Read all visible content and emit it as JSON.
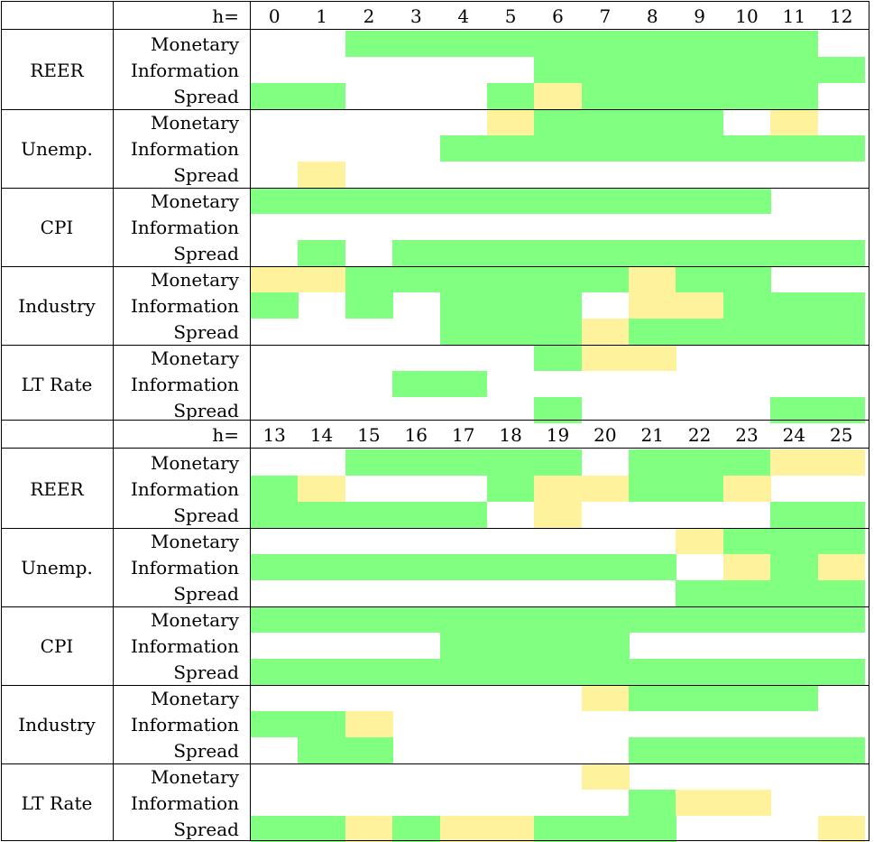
{
  "colors": {
    "significant": "#80ff80",
    "marginal": "#fff29c",
    "none": "#ffffff"
  },
  "legend": {
    "G": "significant",
    "Y": "marginal",
    "W": "none"
  },
  "variables": [
    "REER",
    "Unemp.",
    "CPI",
    "Industry",
    "LT Rate"
  ],
  "shocks": [
    "Monetary",
    "Information",
    "Spread"
  ],
  "header_label": "h=",
  "panels": [
    {
      "horizons": [
        "0",
        "1",
        "2",
        "3",
        "4",
        "5",
        "6",
        "7",
        "8",
        "9",
        "10",
        "11",
        "12"
      ],
      "rows": [
        {
          "variable": "REER",
          "shock": "Monetary",
          "cells": "WWGGGGGGGGGGW"
        },
        {
          "variable": "REER",
          "shock": "Information",
          "cells": "WWWWWWGGGGGGG"
        },
        {
          "variable": "REER",
          "shock": "Spread",
          "cells": "GGWWWGYGGGGGW"
        },
        {
          "variable": "Unemp.",
          "shock": "Monetary",
          "cells": "WWWWWYGGGGWYW"
        },
        {
          "variable": "Unemp.",
          "shock": "Information",
          "cells": "WWWWGGGGGGGGG"
        },
        {
          "variable": "Unemp.",
          "shock": "Spread",
          "cells": "WYWWWWWWWWWWW"
        },
        {
          "variable": "CPI",
          "shock": "Monetary",
          "cells": "GGGGGGGGGGGWW"
        },
        {
          "variable": "CPI",
          "shock": "Information",
          "cells": "WWWWWWWWWWWWW"
        },
        {
          "variable": "CPI",
          "shock": "Spread",
          "cells": "WGWGGGGGGGGGG"
        },
        {
          "variable": "Industry",
          "shock": "Monetary",
          "cells": "YYGGGGGGYGGWW"
        },
        {
          "variable": "Industry",
          "shock": "Information",
          "cells": "GWGWGGGWYYGGG"
        },
        {
          "variable": "Industry",
          "shock": "Spread",
          "cells": "WWWWGGGYGGGGG"
        },
        {
          "variable": "LT Rate",
          "shock": "Monetary",
          "cells": "WWWWWWGYYWWWW"
        },
        {
          "variable": "LT Rate",
          "shock": "Information",
          "cells": "WWWGGWWWWWWWW"
        },
        {
          "variable": "LT Rate",
          "shock": "Spread",
          "cells": "WWWWWWGWWWWGG"
        }
      ]
    },
    {
      "horizons": [
        "13",
        "14",
        "15",
        "16",
        "17",
        "18",
        "19",
        "20",
        "21",
        "22",
        "23",
        "24",
        "25"
      ],
      "rows": [
        {
          "variable": "REER",
          "shock": "Monetary",
          "cells": "WWGGGGGWGGGYY"
        },
        {
          "variable": "REER",
          "shock": "Information",
          "cells": "GYWWWGYYGGYWW"
        },
        {
          "variable": "REER",
          "shock": "Spread",
          "cells": "GGGGGWYWWWWGG"
        },
        {
          "variable": "Unemp.",
          "shock": "Monetary",
          "cells": "WWWWWWWWWYGGG"
        },
        {
          "variable": "Unemp.",
          "shock": "Information",
          "cells": "GGGGGGGGGWYGY"
        },
        {
          "variable": "Unemp.",
          "shock": "Spread",
          "cells": "WWWWWWWWWGGGG"
        },
        {
          "variable": "CPI",
          "shock": "Monetary",
          "cells": "GGGGGGGGGGGGG"
        },
        {
          "variable": "CPI",
          "shock": "Information",
          "cells": "WWWWGGGGWWWWW"
        },
        {
          "variable": "CPI",
          "shock": "Spread",
          "cells": "GGGGGGGGGGGGG"
        },
        {
          "variable": "Industry",
          "shock": "Monetary",
          "cells": "WWWWWWWYGGGGW"
        },
        {
          "variable": "Industry",
          "shock": "Information",
          "cells": "GGYWWWWWWWWWW"
        },
        {
          "variable": "Industry",
          "shock": "Spread",
          "cells": "WGGWWWWWGGGGG"
        },
        {
          "variable": "LT Rate",
          "shock": "Monetary",
          "cells": "WWWWWWWYWWWWW"
        },
        {
          "variable": "LT Rate",
          "shock": "Information",
          "cells": "WWWWWWWWGYYWW"
        },
        {
          "variable": "LT Rate",
          "shock": "Spread",
          "cells": "GGYGYYGGGWWWY"
        }
      ]
    }
  ]
}
